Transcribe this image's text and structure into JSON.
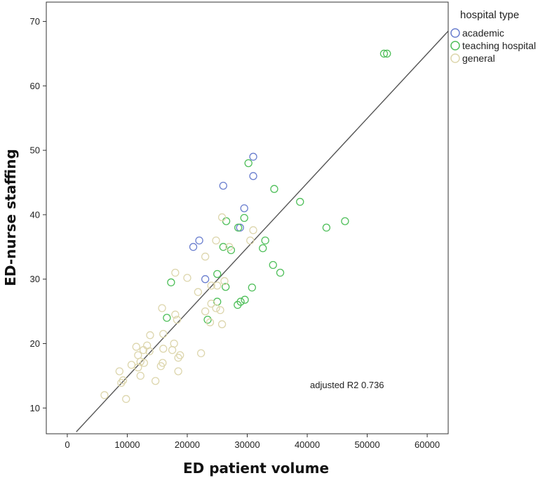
{
  "chart_data": {
    "type": "scatter",
    "title": "",
    "xlabel": "ED patient volume",
    "ylabel": "ED-nurse staffing",
    "xlim": [
      -3500,
      63500
    ],
    "ylim": [
      6,
      73
    ],
    "xticks": [
      0,
      10000,
      20000,
      30000,
      40000,
      50000,
      60000
    ],
    "yticks": [
      10,
      20,
      30,
      40,
      50,
      60,
      70
    ],
    "grid": false,
    "legend": {
      "title": "hospital type",
      "position": "top-right outside"
    },
    "annotation": "adjusted R2 0.736",
    "fit_line": {
      "x": [
        1500,
        63500
      ],
      "y": [
        6.3,
        68.5
      ]
    },
    "series": [
      {
        "name": "academic",
        "color": "#6b7fcf",
        "points": [
          [
            22000,
            36
          ],
          [
            21000,
            35
          ],
          [
            23000,
            30
          ],
          [
            26000,
            44.5
          ],
          [
            31000,
            49
          ],
          [
            31000,
            46
          ],
          [
            29500,
            41
          ],
          [
            28800,
            38
          ]
        ]
      },
      {
        "name": "teaching hospital",
        "color": "#4fbf5a",
        "points": [
          [
            52800,
            65
          ],
          [
            53300,
            65
          ],
          [
            30200,
            48
          ],
          [
            34500,
            44
          ],
          [
            38800,
            42
          ],
          [
            46300,
            39
          ],
          [
            43200,
            38
          ],
          [
            26500,
            39
          ],
          [
            29500,
            39.5
          ],
          [
            28500,
            38
          ],
          [
            33000,
            36
          ],
          [
            26000,
            35
          ],
          [
            27300,
            34.5
          ],
          [
            32600,
            34.8
          ],
          [
            34300,
            32.2
          ],
          [
            35500,
            31
          ],
          [
            25000,
            30.8
          ],
          [
            17300,
            29.5
          ],
          [
            26400,
            28.8
          ],
          [
            30800,
            28.7
          ],
          [
            29600,
            26.8
          ],
          [
            28900,
            26.5
          ],
          [
            28400,
            26
          ],
          [
            25000,
            26.5
          ],
          [
            23400,
            23.7
          ],
          [
            16600,
            24
          ]
        ]
      },
      {
        "name": "general",
        "color": "#ddd6ad",
        "points": [
          [
            25800,
            39.6
          ],
          [
            31000,
            37.6
          ],
          [
            30500,
            36
          ],
          [
            24800,
            36
          ],
          [
            27000,
            35
          ],
          [
            23000,
            33.5
          ],
          [
            18000,
            31
          ],
          [
            20000,
            30.2
          ],
          [
            26200,
            29.7
          ],
          [
            24000,
            29
          ],
          [
            25000,
            29
          ],
          [
            21800,
            28
          ],
          [
            24000,
            26.2
          ],
          [
            23000,
            25
          ],
          [
            24800,
            25.5
          ],
          [
            25500,
            25.2
          ],
          [
            15800,
            25.5
          ],
          [
            18000,
            24.5
          ],
          [
            18300,
            23.7
          ],
          [
            23800,
            23.3
          ],
          [
            25800,
            23
          ],
          [
            13800,
            21.3
          ],
          [
            16000,
            21.5
          ],
          [
            17800,
            20
          ],
          [
            11500,
            19.5
          ],
          [
            13300,
            19.7
          ],
          [
            16000,
            19.2
          ],
          [
            17500,
            19
          ],
          [
            12700,
            19
          ],
          [
            13700,
            18.8
          ],
          [
            11800,
            18.2
          ],
          [
            12200,
            17.2
          ],
          [
            12800,
            17
          ],
          [
            18800,
            18.2
          ],
          [
            18500,
            17.8
          ],
          [
            22300,
            18.5
          ],
          [
            10700,
            16.7
          ],
          [
            11800,
            16.3
          ],
          [
            15900,
            17
          ],
          [
            15600,
            16.5
          ],
          [
            18500,
            15.7
          ],
          [
            8700,
            15.7
          ],
          [
            12200,
            15
          ],
          [
            9300,
            14.3
          ],
          [
            9000,
            13.9
          ],
          [
            14700,
            14.2
          ],
          [
            6200,
            12
          ],
          [
            9800,
            11.4
          ]
        ]
      }
    ]
  }
}
